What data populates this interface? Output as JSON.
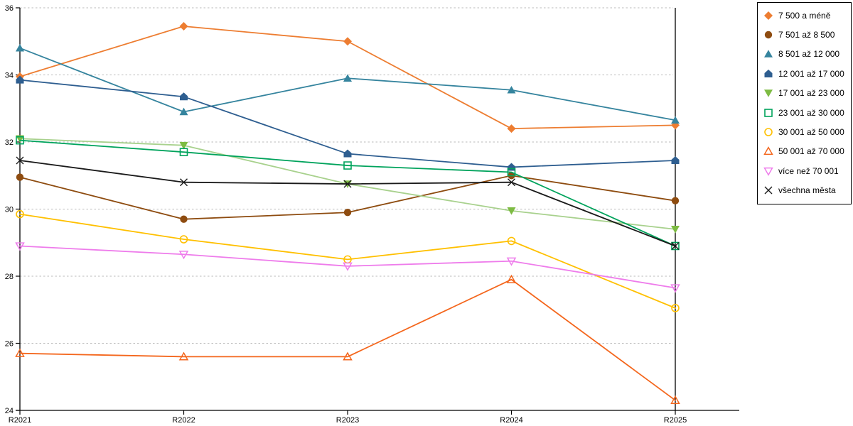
{
  "chart_data": {
    "type": "line",
    "title": "",
    "xlabel": "",
    "ylabel": "",
    "categories": [
      "R2021",
      "R2022",
      "R2023",
      "R2024",
      "R2025"
    ],
    "ylim": [
      24,
      36
    ],
    "y_ticks": [
      36,
      34,
      32,
      30,
      28,
      26,
      24
    ],
    "grid": "horizontal-dashed",
    "legend_position": "right",
    "series": [
      {
        "name": "7 500 a méně",
        "marker": "diamond",
        "color": "#ED7D31",
        "values": [
          33.95,
          35.45,
          35.0,
          32.4,
          32.5
        ]
      },
      {
        "name": "7 501 až 8 500",
        "marker": "circle",
        "color": "#8E4C10",
        "values": [
          30.95,
          29.7,
          29.9,
          31.0,
          30.25
        ]
      },
      {
        "name": "8 501 až 12 000",
        "marker": "triangle-up",
        "color": "#35849E",
        "values": [
          34.8,
          32.9,
          33.9,
          33.55,
          32.65
        ]
      },
      {
        "name": "12 001 až 17 000",
        "marker": "pentagon",
        "color": "#2E5E90",
        "values": [
          33.85,
          33.35,
          31.65,
          31.25,
          31.45
        ]
      },
      {
        "name": "17 001 až 23 000",
        "marker": "triangle-down",
        "color": "#7DBB42",
        "line_color": "#A8D18D",
        "values": [
          32.1,
          31.9,
          30.75,
          29.95,
          29.4
        ]
      },
      {
        "name": "23 001 až 30 000",
        "marker": "square-open",
        "color": "#00A35C",
        "values": [
          32.05,
          31.7,
          31.3,
          31.1,
          28.9
        ]
      },
      {
        "name": "30 001 až 50 000",
        "marker": "circle-open",
        "color": "#FFC000",
        "values": [
          29.85,
          29.1,
          28.5,
          29.05,
          27.05
        ]
      },
      {
        "name": "50 001 až 70 000",
        "marker": "triangle-up-open",
        "color": "#F4661C",
        "values": [
          25.7,
          25.6,
          25.6,
          27.9,
          24.3
        ]
      },
      {
        "name": "více než 70 001",
        "marker": "triangle-down-open",
        "color": "#EE7CEB",
        "values": [
          28.9,
          28.65,
          28.3,
          28.45,
          27.65
        ]
      },
      {
        "name": "všechna města",
        "marker": "x-cross",
        "color": "#1A1A1A",
        "values": [
          31.45,
          30.8,
          30.75,
          30.8,
          28.9
        ]
      }
    ],
    "colors": {
      "grid": "#BBBBBB",
      "axis": "#000000",
      "background": "#FFFFFF"
    }
  }
}
